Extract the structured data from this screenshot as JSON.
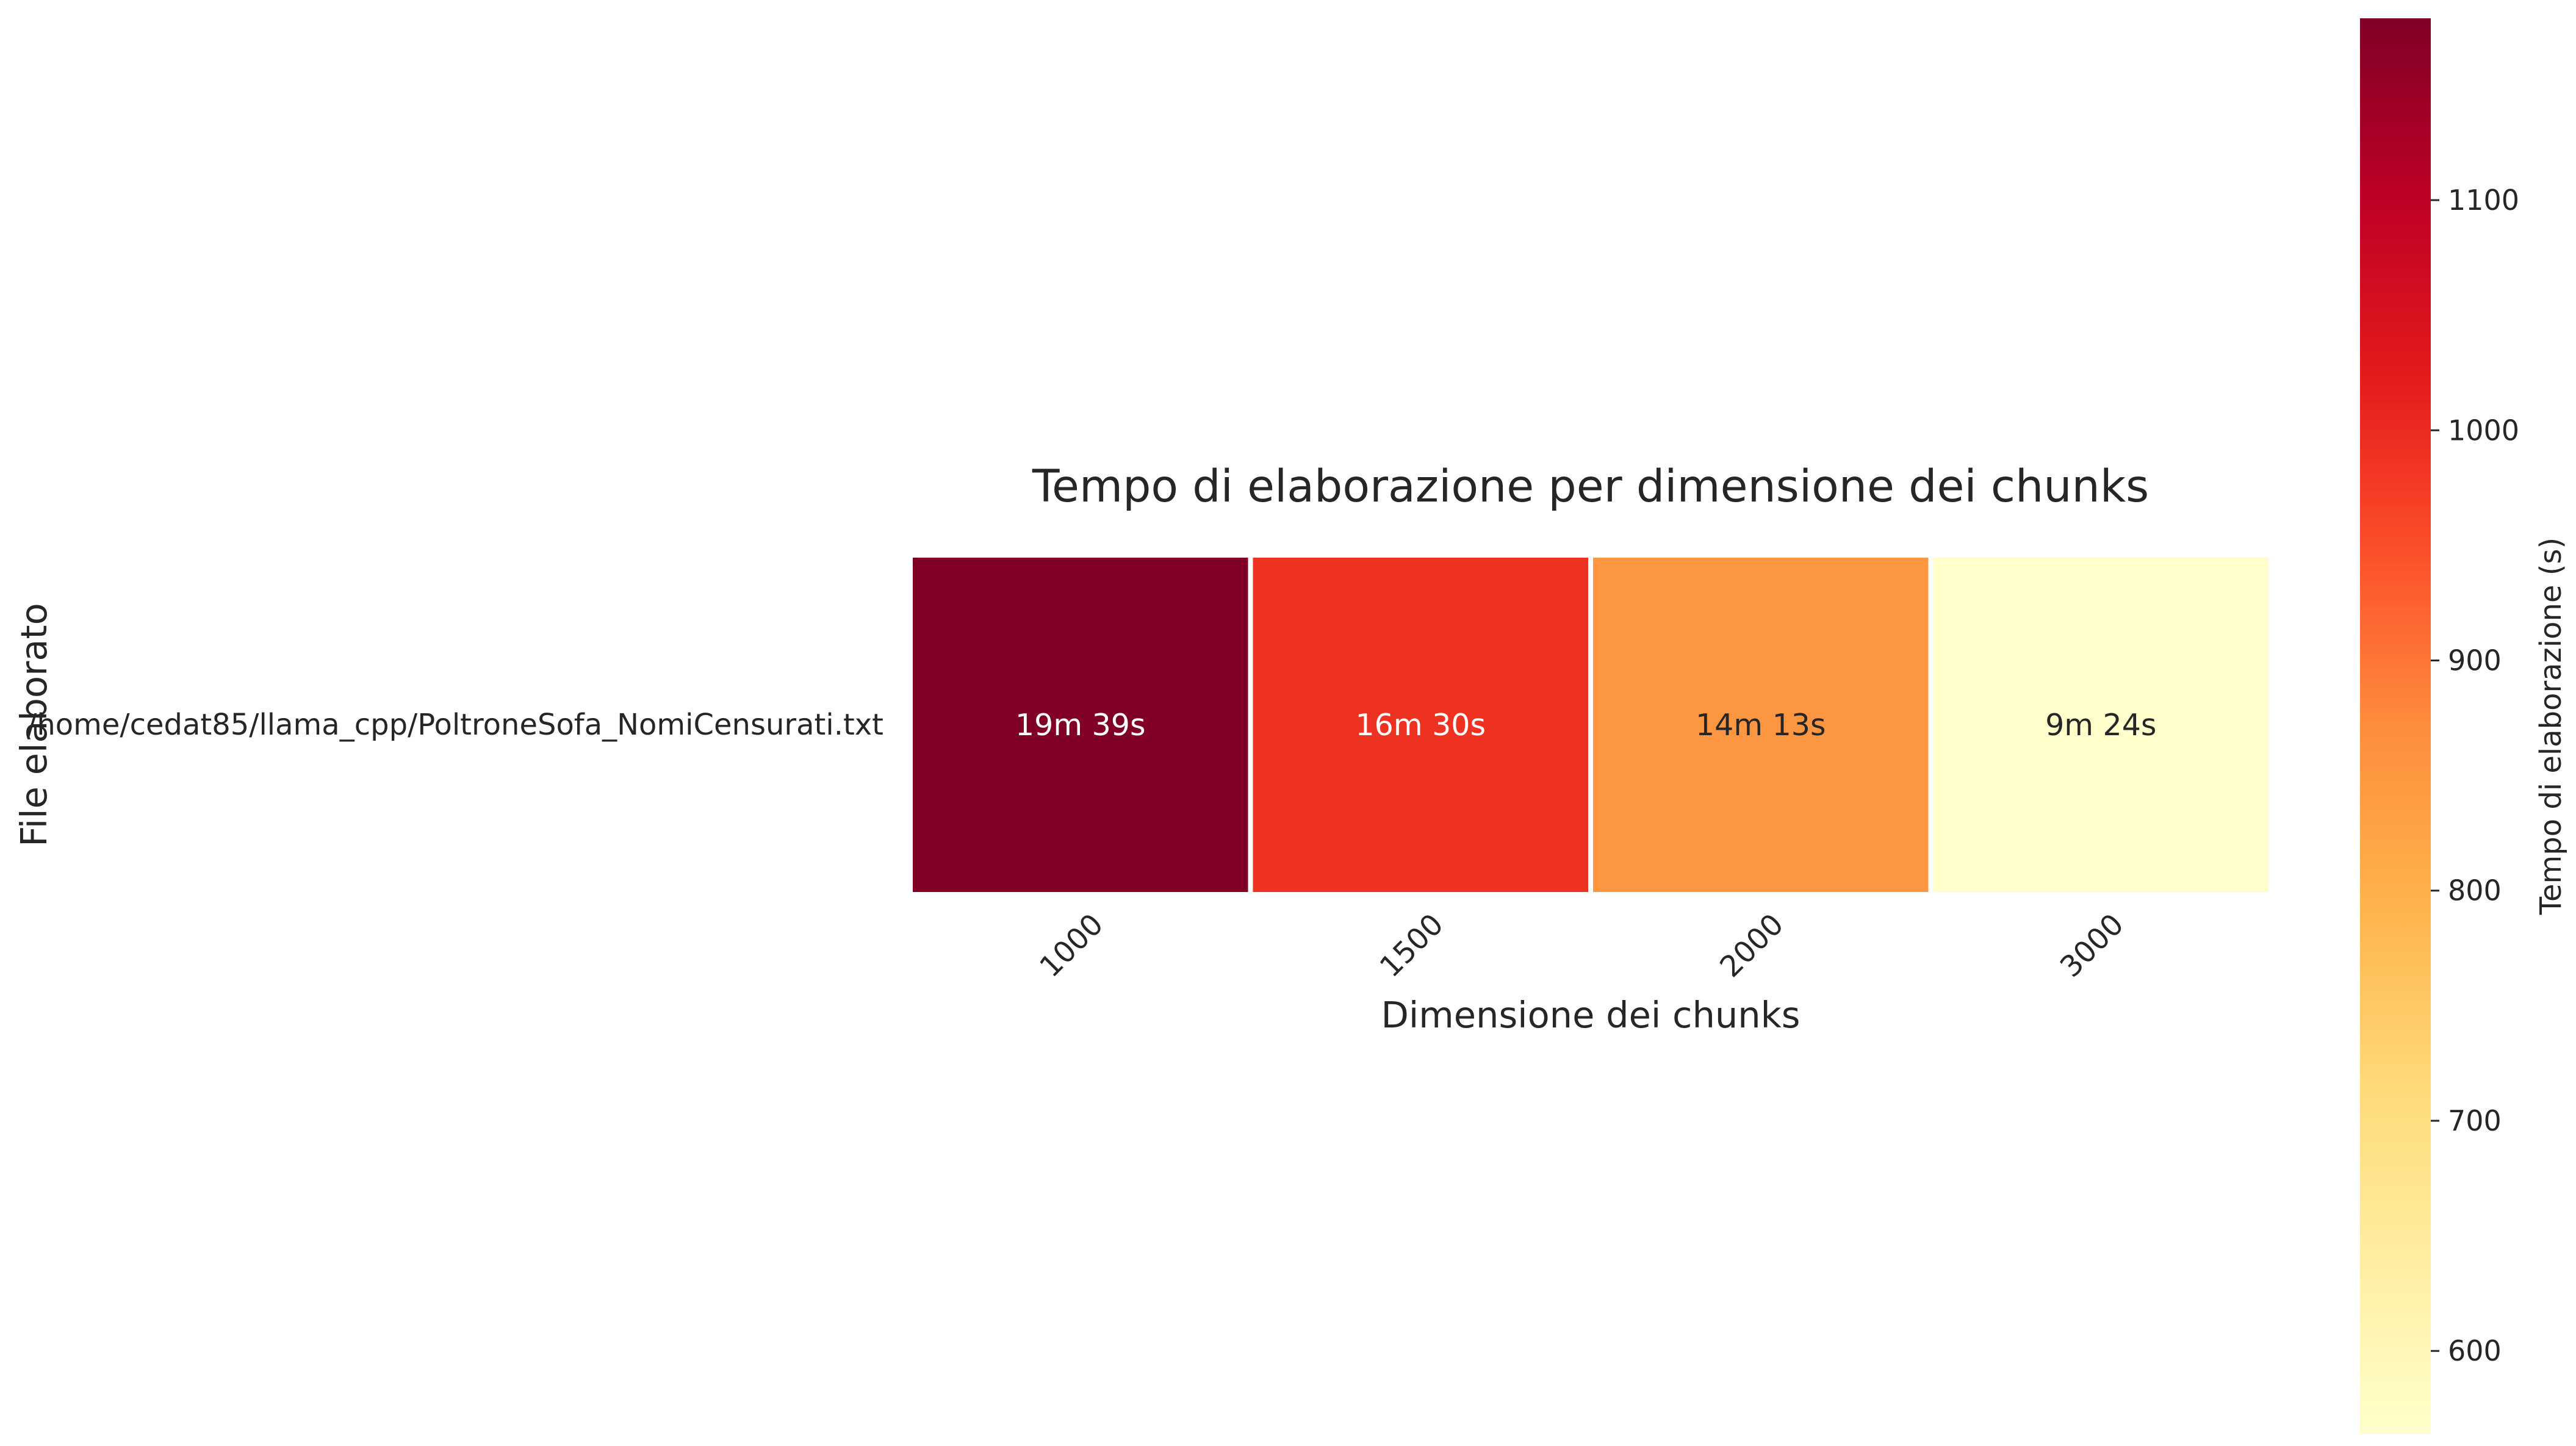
{
  "chart_data": {
    "type": "heatmap",
    "title": "Tempo di elaborazione per dimensione dei chunks",
    "xlabel": "Dimensione dei chunks",
    "ylabel": "File elaborato",
    "x_categories": [
      "1000",
      "1500",
      "2000",
      "3000"
    ],
    "y_categories": [
      "/home/cedat85/llama_cpp/PoltroneSofa_NomiCensurati.txt"
    ],
    "values": [
      [
        1179,
        990,
        853,
        564
      ]
    ],
    "annotations": [
      [
        "19m 39s",
        "16m 30s",
        "14m 13s",
        "9m 24s"
      ]
    ],
    "colormap": "YlOrRd",
    "colormap_stops": [
      "#ffffcc",
      "#ffeda0",
      "#fed976",
      "#feb24c",
      "#fd8d3c",
      "#fc4e2a",
      "#e31a1c",
      "#bd0026",
      "#800026"
    ],
    "color_range": [
      564,
      1179
    ],
    "colorbar": {
      "label": "Tempo di elaborazione (s)",
      "ticks": [
        600,
        700,
        800,
        900,
        1000,
        1100
      ],
      "tick_labels": [
        "600",
        "700",
        "800",
        "900",
        "1000",
        "1100"
      ],
      "placement": "right"
    },
    "x_tick_rotation": 45,
    "grid": false
  }
}
